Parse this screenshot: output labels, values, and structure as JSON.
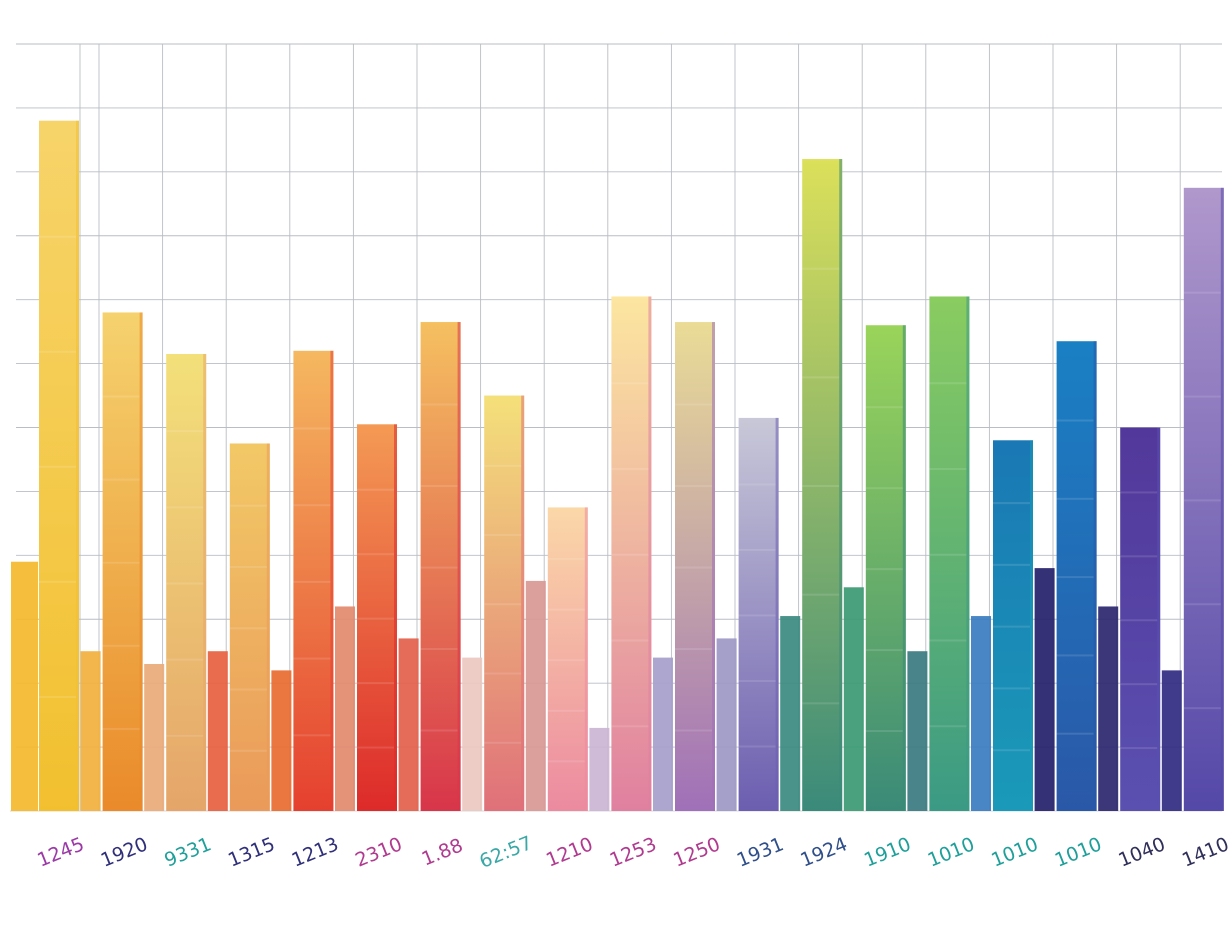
{
  "chart_data": {
    "type": "bar",
    "title": "",
    "xlabel": "",
    "ylabel": "",
    "ylim": [
      0,
      12
    ],
    "grid": true,
    "legend": "none",
    "categories": [
      "1245",
      "1920",
      "9331",
      "1315",
      "1213",
      "2310",
      "1.88",
      "62:57",
      "1210",
      "1253",
      "1250",
      "1931",
      "1924",
      "1910",
      "1010",
      "1010",
      "1010",
      "1040",
      "1410"
    ],
    "label_colors": [
      "#9b3aa6",
      "#2f2f7a",
      "#1f9f9a",
      "#2f2f7a",
      "#2f2f7a",
      "#b03a8f",
      "#b03a8f",
      "#3aa8a6",
      "#b03a8f",
      "#b03a8f",
      "#b03a8f",
      "#2f4f8a",
      "#2f4f8a",
      "#1f9f9a",
      "#1f9f9a",
      "#1f9f9a",
      "#1f9f9a",
      "#2f2f5a",
      "#2f2f5a"
    ],
    "front_values": [
      10.8,
      7.8,
      7.15,
      5.75,
      7.2,
      6.05,
      7.65,
      6.5,
      4.75,
      8.05,
      7.65,
      6.15,
      10.2,
      7.6,
      8.05,
      5.8,
      7.35,
      6.0,
      9.75
    ],
    "back_values": [
      3.9,
      2.5,
      2.3,
      2.5,
      2.2,
      3.2,
      2.7,
      2.4,
      3.6,
      1.3,
      2.4,
      2.7,
      3.05,
      3.5,
      2.5,
      3.05,
      3.8,
      3.2,
      2.2
    ],
    "front_colors": [
      [
        "#f2c02f",
        "#f7d46a"
      ],
      [
        "#ea8a2a",
        "#f5d26e"
      ],
      [
        "#e5a56a",
        "#f3e07a"
      ],
      [
        "#ea9a5a",
        "#f2c866"
      ],
      [
        "#e5402f",
        "#f5b860"
      ],
      [
        "#dd2a2a",
        "#f49a55"
      ],
      [
        "#d8354a",
        "#f5c060"
      ],
      [
        "#e0707a",
        "#f4e07a"
      ],
      [
        "#ec8aa0",
        "#fbd8a8"
      ],
      [
        "#e080a0",
        "#fce6a0"
      ],
      [
        "#a070b8",
        "#eadc96"
      ],
      [
        "#6c5eb0",
        "#c8c8d8"
      ],
      [
        "#3a8a7a",
        "#dce05a"
      ],
      [
        "#3a8a78",
        "#9ad45a"
      ],
      [
        "#3a9a84",
        "#8acc60"
      ],
      [
        "#1a9ab8",
        "#1a78b4"
      ],
      [
        "#2a58a8",
        "#1a80c4"
      ],
      [
        "#5a50b0",
        "#52389a"
      ],
      [
        "#5448a8",
        "#b098cc"
      ]
    ],
    "back_colors": [
      "#f4b82c",
      "#f2b03e",
      "#eaaa78",
      "#e6603e",
      "#e86a30",
      "#e28a6e",
      "#e2604a",
      "#eac8c0",
      "#d89894",
      "#cbb4d4",
      "#a6a0cc",
      "#9c98c4",
      "#3a8a80",
      "#3a9a72",
      "#3a7a80",
      "#3a7cc0",
      "#24206a",
      "#2a266e",
      "#302a80"
    ]
  }
}
